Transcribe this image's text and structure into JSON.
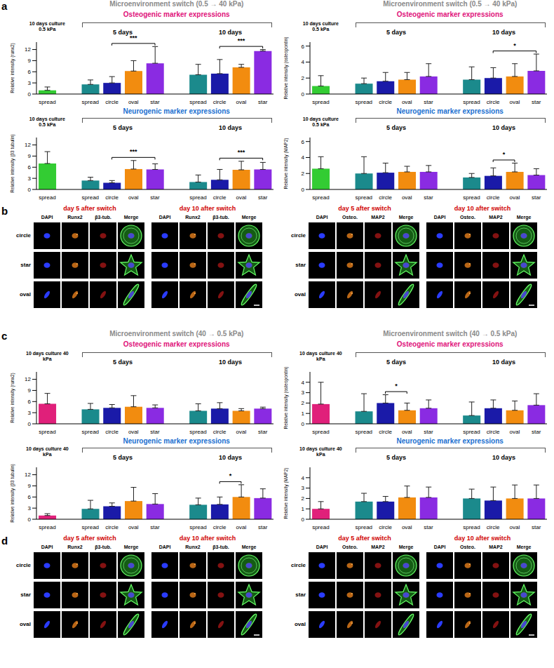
{
  "panel_labels": [
    "a",
    "b",
    "c",
    "d"
  ],
  "chart_data": [
    {
      "type": "bar",
      "header": "Microenvironment switch (0.5 → 40 kPa)",
      "title": "Osteogenic marker expressions",
      "ylabel": "Relative intensity (runx2)",
      "group_labels": [
        "10 days culture 0.5 kPa",
        "5 days",
        "10 days"
      ],
      "categories": [
        "spread",
        null,
        "spread",
        "circle",
        "oval",
        "star",
        null,
        "spread",
        "circle",
        "oval",
        "star"
      ],
      "values": [
        1.0,
        null,
        2.6,
        3.0,
        6.2,
        8.3,
        null,
        5.2,
        5.5,
        7.2,
        11.6
      ],
      "errors": [
        0.9,
        null,
        1.2,
        1.7,
        2.8,
        4.5,
        null,
        2.8,
        3.8,
        0.8,
        0.4
      ],
      "colors": [
        "#33cc33",
        null,
        "#1b8a8c",
        "#1a1aa8",
        "#f28c0f",
        "#8a2be2",
        null,
        "#1b8a8c",
        "#1a1aa8",
        "#f28c0f",
        "#8a2be2"
      ],
      "ylim": [
        0,
        14
      ],
      "yticks": [
        0,
        3,
        6,
        9,
        12
      ],
      "significance": [
        {
          "from": 3,
          "to": 5,
          "label": "***"
        },
        {
          "from": 8,
          "to": 10,
          "label": "***"
        }
      ]
    },
    {
      "type": "bar",
      "title": "Neurogenic marker expressions",
      "ylabel": "Relative intensity (β3 tubulin)",
      "group_labels": [
        "10 days culture 0.5 kPa",
        "5 days",
        "10 days"
      ],
      "categories": [
        "spread",
        null,
        "spread",
        "circle",
        "oval",
        "star",
        null,
        "spread",
        "circle",
        "oval",
        "star"
      ],
      "values": [
        7.0,
        null,
        2.4,
        1.8,
        5.5,
        5.4,
        null,
        2.0,
        2.6,
        5.3,
        5.4
      ],
      "errors": [
        3.2,
        null,
        0.9,
        0.6,
        2.3,
        1.5,
        null,
        1.9,
        2.8,
        2.3,
        1.9
      ],
      "colors": [
        "#33cc33",
        null,
        "#1b8a8c",
        "#1a1aa8",
        "#f28c0f",
        "#8a2be2",
        null,
        "#1b8a8c",
        "#1a1aa8",
        "#f28c0f",
        "#8a2be2"
      ],
      "ylim": [
        0,
        14
      ],
      "yticks": [
        0,
        3,
        6,
        9,
        12
      ],
      "significance": [
        {
          "from": 3,
          "to": 5,
          "label": "***"
        },
        {
          "from": 8,
          "to": 10,
          "label": "***"
        }
      ]
    },
    {
      "type": "bar",
      "header": "Microenvironment switch (0.5 → 40 kPa)",
      "title": "Osteogenic marker expressions",
      "ylabel": "Relative intensity (osteopontin)",
      "group_labels": [
        "10 days culture 0.5 kPa",
        "5 days",
        "10 days"
      ],
      "categories": [
        "spread",
        null,
        "spread",
        "circle",
        "oval",
        "star",
        null,
        "spread",
        "circle",
        "oval",
        "star"
      ],
      "values": [
        1.0,
        null,
        1.3,
        1.6,
        1.8,
        2.2,
        null,
        1.8,
        2.0,
        2.2,
        2.9
      ],
      "errors": [
        1.3,
        null,
        0.7,
        1.1,
        0.9,
        1.6,
        null,
        1.6,
        1.3,
        1.6,
        2.1
      ],
      "colors": [
        "#33cc33",
        null,
        "#1b8a8c",
        "#1a1aa8",
        "#f28c0f",
        "#8a2be2",
        null,
        "#1b8a8c",
        "#1a1aa8",
        "#f28c0f",
        "#8a2be2"
      ],
      "ylim": [
        0,
        6.5
      ],
      "yticks": [
        0,
        2,
        4,
        6
      ],
      "significance": [
        {
          "from": 8,
          "to": 10,
          "label": "*"
        }
      ]
    },
    {
      "type": "bar",
      "title": "Neurogenic marker expressions",
      "ylabel": "Relative intensity (MAP2)",
      "group_labels": [
        "10 days culture 0.5 kPa",
        "5 days",
        "10 days"
      ],
      "categories": [
        "spread",
        null,
        "spread",
        "circle",
        "oval",
        "star",
        null,
        "spread",
        "circle",
        "oval",
        "star"
      ],
      "values": [
        2.6,
        null,
        2.0,
        2.1,
        2.2,
        2.2,
        null,
        1.5,
        1.7,
        2.2,
        1.8
      ],
      "errors": [
        1.5,
        null,
        2.1,
        1.2,
        0.7,
        0.8,
        null,
        0.5,
        1.0,
        1.1,
        0.8
      ],
      "colors": [
        "#33cc33",
        null,
        "#1b8a8c",
        "#1a1aa8",
        "#f28c0f",
        "#8a2be2",
        null,
        "#1b8a8c",
        "#1a1aa8",
        "#f28c0f",
        "#8a2be2"
      ],
      "ylim": [
        0,
        6.5
      ],
      "yticks": [
        0,
        2,
        4,
        6
      ],
      "significance": [
        {
          "from": 8,
          "to": 9,
          "label": "*"
        }
      ]
    },
    {
      "type": "bar",
      "header": "Microenvironment switch (40 → 0.5 kPa)",
      "title": "Osteogenic marker expressions",
      "ylabel": "Relative intensity (runx2)",
      "group_labels": [
        "10 days culture 40 kPa",
        "5 days",
        "10 days"
      ],
      "categories": [
        "spread",
        null,
        "spread",
        "circle",
        "oval",
        "star",
        null,
        "spread",
        "circle",
        "oval",
        "star"
      ],
      "values": [
        5.4,
        null,
        3.9,
        4.3,
        4.6,
        4.3,
        null,
        3.5,
        4.1,
        3.5,
        4.1
      ],
      "errors": [
        2.8,
        null,
        1.6,
        0.9,
        3.0,
        0.8,
        null,
        1.9,
        1.6,
        0.6,
        0.4
      ],
      "colors": [
        "#e0207a",
        null,
        "#1b8a8c",
        "#1a1aa8",
        "#f28c0f",
        "#8a2be2",
        null,
        "#1b8a8c",
        "#1a1aa8",
        "#f28c0f",
        "#8a2be2"
      ],
      "ylim": [
        0,
        14
      ],
      "yticks": [
        0,
        3,
        6,
        9,
        12
      ],
      "significance": []
    },
    {
      "type": "bar",
      "title": "Neurogenic marker expressions",
      "ylabel": "Relative intensity (β3 tubulin)",
      "group_labels": [
        "10 days culture 40 kPa",
        "5 days",
        "10 days"
      ],
      "categories": [
        "spread",
        null,
        "spread",
        "circle",
        "oval",
        "star",
        null,
        "spread",
        "circle",
        "oval",
        "star"
      ],
      "values": [
        1.0,
        null,
        2.8,
        3.5,
        4.9,
        4.1,
        null,
        3.9,
        4.0,
        6.0,
        5.7
      ],
      "errors": [
        0.5,
        null,
        2.3,
        0.9,
        3.7,
        2.8,
        null,
        1.8,
        2.0,
        3.3,
        2.5
      ],
      "colors": [
        "#e0207a",
        null,
        "#1b8a8c",
        "#1a1aa8",
        "#f28c0f",
        "#8a2be2",
        null,
        "#1b8a8c",
        "#1a1aa8",
        "#f28c0f",
        "#8a2be2"
      ],
      "ylim": [
        0,
        14
      ],
      "yticks": [
        0,
        3,
        6,
        9,
        12
      ],
      "significance": [
        {
          "from": 8,
          "to": 9,
          "label": "*"
        }
      ]
    },
    {
      "type": "bar",
      "header": "Microenvironment switch (40 → 0.5 kPa)",
      "title": "Osteogenic marker expressions",
      "ylabel": "Relative intensity (osteopontin)",
      "group_labels": [
        "10 days culture 40 kPa",
        "5 days",
        "10 days"
      ],
      "categories": [
        "spread",
        null,
        "spread",
        "circle",
        "oval",
        "star",
        null,
        "spread",
        "circle",
        "oval",
        "star"
      ],
      "values": [
        1.9,
        null,
        1.2,
        2.0,
        1.3,
        1.5,
        null,
        0.8,
        1.5,
        1.3,
        1.8
      ],
      "errors": [
        2.1,
        null,
        1.7,
        0.8,
        0.7,
        0.8,
        null,
        1.3,
        0.8,
        0.9,
        1.1
      ],
      "colors": [
        "#e0207a",
        null,
        "#1b8a8c",
        "#1a1aa8",
        "#f28c0f",
        "#8a2be2",
        null,
        "#1b8a8c",
        "#1a1aa8",
        "#f28c0f",
        "#8a2be2"
      ],
      "ylim": [
        0,
        5
      ],
      "yticks": [
        0,
        1,
        2,
        3,
        4
      ],
      "significance": [
        {
          "from": 3,
          "to": 4,
          "label": "*"
        }
      ]
    },
    {
      "type": "bar",
      "title": "Neurogenic marker expressions",
      "ylabel": "Relative intensity (MAP2)",
      "group_labels": [
        "10 days culture 40 kPa",
        "5 days",
        "10 days"
      ],
      "categories": [
        "spread",
        null,
        "spread",
        "circle",
        "oval",
        "star",
        null,
        "spread",
        "circle",
        "oval",
        "star"
      ],
      "values": [
        1.0,
        null,
        1.7,
        1.7,
        2.1,
        2.1,
        null,
        2.0,
        1.8,
        2.0,
        2.0
      ],
      "errors": [
        0.7,
        null,
        0.8,
        0.5,
        1.1,
        1.0,
        null,
        0.9,
        1.3,
        1.3,
        1.3
      ],
      "colors": [
        "#e0207a",
        null,
        "#1b8a8c",
        "#1a1aa8",
        "#f28c0f",
        "#8a2be2",
        null,
        "#1b8a8c",
        "#1a1aa8",
        "#f28c0f",
        "#8a2be2"
      ],
      "ylim": [
        0,
        5
      ],
      "yticks": [
        0,
        1,
        2,
        3,
        4
      ],
      "significance": []
    }
  ],
  "image_panels": [
    {
      "rows": [
        "circle",
        "star",
        "oval"
      ],
      "halves": [
        {
          "days": [
            "day 5 after switch",
            "day 10 after switch"
          ],
          "channels": [
            "DAPI",
            "Runx2",
            "β3-tub.",
            "Merge"
          ]
        },
        {
          "days": [
            "day 5 after switch",
            "day 10 after switch"
          ],
          "channels": [
            "DAPI",
            "Osteo.",
            "MAP2",
            "Merge"
          ]
        }
      ]
    },
    {
      "rows": [
        "circle",
        "star",
        "oval"
      ],
      "halves": [
        {
          "days": [
            "day 5 after switch",
            "day 10 after switch"
          ],
          "channels": [
            "DAPI",
            "Runx2",
            "β3-tub.",
            "Merge"
          ]
        },
        {
          "days": [
            "day 5 after switch",
            "day 10 after switch"
          ],
          "channels": [
            "DAPI",
            "Osteo.",
            "MAP2",
            "Merge"
          ]
        }
      ]
    }
  ]
}
